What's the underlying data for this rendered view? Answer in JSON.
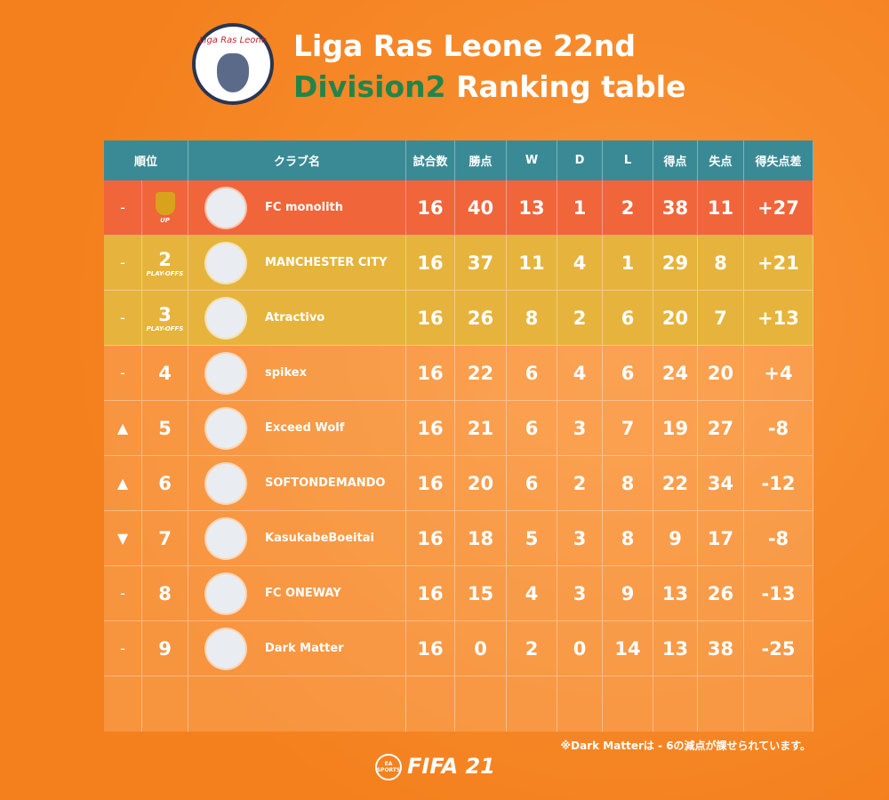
{
  "header": {
    "logo_text": "Liga Ras Leone",
    "title_line1": "Liga Ras Leone 22nd",
    "title_division": "Division2",
    "title_rest": "Ranking table"
  },
  "table": {
    "columns": [
      "順位",
      "クラブ名",
      "試合数",
      "勝点",
      "W",
      "D",
      "L",
      "得点",
      "失点",
      "得失点差"
    ],
    "rows": [
      {
        "movement": "-",
        "rank_note": "UP",
        "club": "FC monolith",
        "played": 16,
        "points": 40,
        "w": 13,
        "d": 1,
        "l": 2,
        "gf": 38,
        "ga": 11,
        "gd": "+27"
      },
      {
        "movement": "-",
        "rank": 2,
        "rank_note": "PLAY-OFFS",
        "club": "MANCHESTER CITY",
        "played": 16,
        "points": 37,
        "w": 11,
        "d": 4,
        "l": 1,
        "gf": 29,
        "ga": 8,
        "gd": "+21"
      },
      {
        "movement": "-",
        "rank": 3,
        "rank_note": "PLAY-OFFS",
        "club": "Atractivo",
        "played": 16,
        "points": 26,
        "w": 8,
        "d": 2,
        "l": 6,
        "gf": 20,
        "ga": 7,
        "gd": "+13"
      },
      {
        "movement": "-",
        "rank": 4,
        "club": "spikex",
        "played": 16,
        "points": 22,
        "w": 6,
        "d": 4,
        "l": 6,
        "gf": 24,
        "ga": 20,
        "gd": "+4"
      },
      {
        "movement": "▲",
        "rank": 5,
        "club": "Exceed Wolf",
        "played": 16,
        "points": 21,
        "w": 6,
        "d": 3,
        "l": 7,
        "gf": 19,
        "ga": 27,
        "gd": "-8"
      },
      {
        "movement": "▲",
        "rank": 6,
        "club": "SOFTONDEMANDO",
        "played": 16,
        "points": 20,
        "w": 6,
        "d": 2,
        "l": 8,
        "gf": 22,
        "ga": 34,
        "gd": "-12"
      },
      {
        "movement": "▼",
        "rank": 7,
        "club": "KasukabeBoeitai",
        "played": 16,
        "points": 18,
        "w": 5,
        "d": 3,
        "l": 8,
        "gf": 9,
        "ga": 17,
        "gd": "-8"
      },
      {
        "movement": "-",
        "rank": 8,
        "club": "FC ONEWAY",
        "played": 16,
        "points": 15,
        "w": 4,
        "d": 3,
        "l": 9,
        "gf": 13,
        "ga": 26,
        "gd": "-13"
      },
      {
        "movement": "-",
        "rank": 9,
        "club": "Dark Matter",
        "played": 16,
        "points": 0,
        "w": 2,
        "d": 0,
        "l": 14,
        "gf": 13,
        "ga": 38,
        "gd": "-25"
      }
    ],
    "note": "※Dark Matterは - 6の減点が課せられています。"
  },
  "footer": {
    "brand": "EA SPORTS",
    "game": "FIFA 21"
  }
}
